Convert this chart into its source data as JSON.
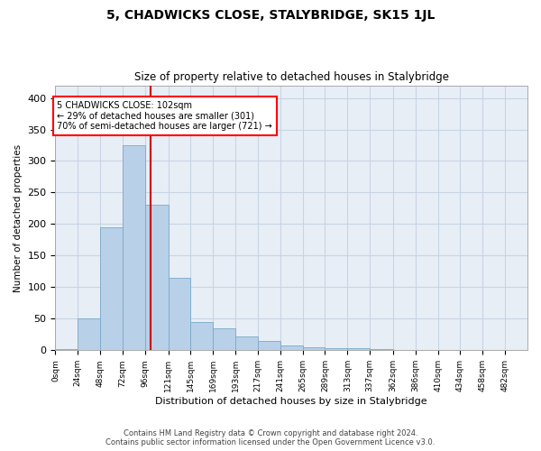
{
  "title": "5, CHADWICKS CLOSE, STALYBRIDGE, SK15 1JL",
  "subtitle": "Size of property relative to detached houses in Stalybridge",
  "xlabel": "Distribution of detached houses by size in Stalybridge",
  "ylabel": "Number of detached properties",
  "annotation_line1": "5 CHADWICKS CLOSE: 102sqm",
  "annotation_line2": "← 29% of detached houses are smaller (301)",
  "annotation_line3": "70% of semi-detached houses are larger (721) →",
  "property_size": 102,
  "bar_edges": [
    0,
    24,
    48,
    72,
    96,
    121,
    145,
    169,
    193,
    217,
    241,
    265,
    289,
    313,
    337,
    362,
    386,
    410,
    434,
    458,
    482,
    506
  ],
  "bar_heights": [
    2,
    50,
    195,
    325,
    230,
    115,
    45,
    35,
    22,
    15,
    8,
    5,
    4,
    3,
    2,
    1,
    1,
    0,
    0,
    0,
    1
  ],
  "bar_color": "#b8d0e8",
  "bar_edge_color": "#7aaac8",
  "red_line_color": "#cc0000",
  "grid_color": "#c8d4e4",
  "axes_background": "#e8eef6",
  "fig_background": "#ffffff",
  "ylim": [
    0,
    420
  ],
  "yticks": [
    0,
    50,
    100,
    150,
    200,
    250,
    300,
    350,
    400
  ],
  "footer_line1": "Contains HM Land Registry data © Crown copyright and database right 2024.",
  "footer_line2": "Contains public sector information licensed under the Open Government Licence v3.0."
}
